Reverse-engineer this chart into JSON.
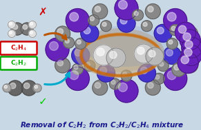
{
  "title": "Removal of C$_2$H$_2$ from C$_2$H$_2$/C$_2$H$_4$ mixture",
  "title_color": "#1a1a8c",
  "title_fontsize": 7.5,
  "bg_color": "#c8d8e4",
  "purple": "#6622bb",
  "blue_purple": "#4433cc",
  "gray_sphere": "#888888",
  "gray_dark": "#555555",
  "silver": "#d0d0d0",
  "silver2": "#b8b8b8",
  "white_sphere": "#eeeeee",
  "label_C2H4": "C$_2$H$_4$",
  "label_C2H2": "C$_2$H$_2$",
  "box_C2H4_color": "#cc0000",
  "box_C2H2_color": "#00aa00",
  "arrow_orange_color": "#bb5500",
  "arrow_cyan_color": "#00aacc",
  "cross_color": "#cc0000",
  "check_color": "#00cc00",
  "figsize": [
    2.91,
    1.89
  ],
  "dpi": 100
}
